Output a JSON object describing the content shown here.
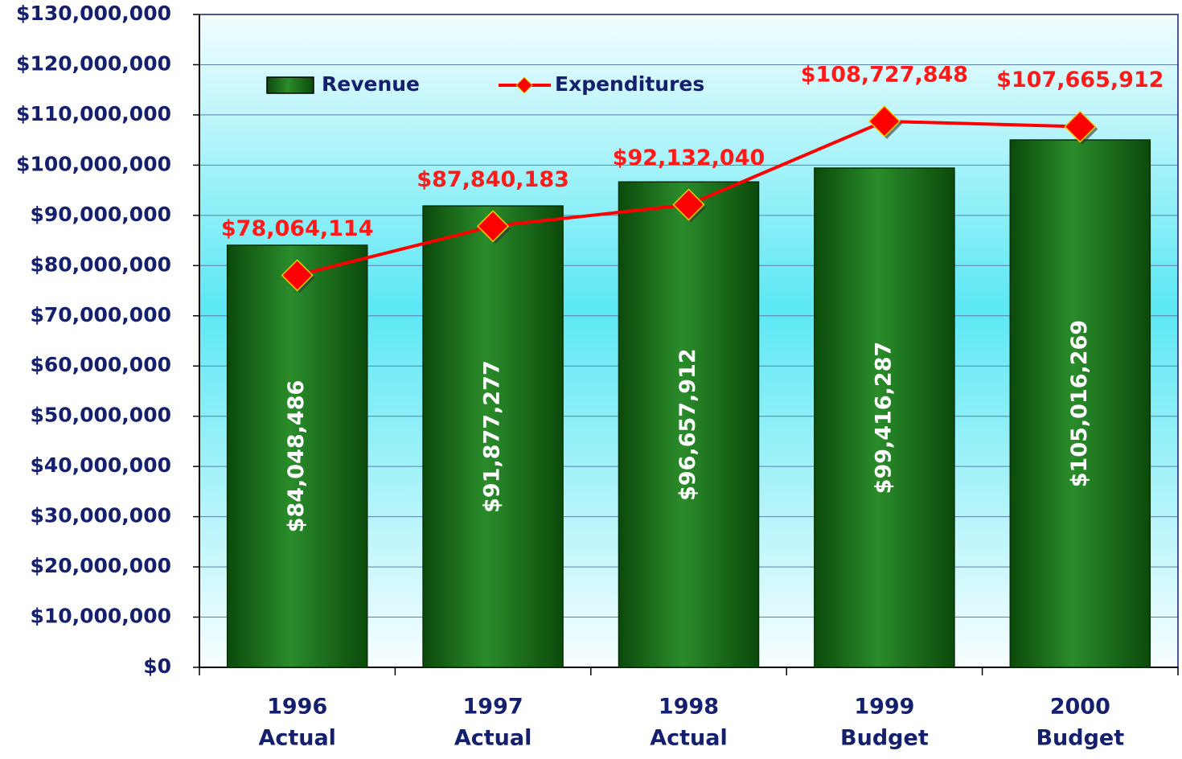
{
  "chart_data": {
    "type": "bar",
    "categories": [
      [
        "1996",
        "Actual"
      ],
      [
        "1997",
        "Actual"
      ],
      [
        "1998",
        "Actual"
      ],
      [
        "1999",
        "Budget"
      ],
      [
        "2000",
        "Budget"
      ]
    ],
    "series": [
      {
        "name": "Revenue",
        "type": "bar",
        "color": "#1e7a1e",
        "values": [
          84048486,
          91877277,
          96657912,
          99416287,
          105016269
        ],
        "value_labels": [
          "$84,048,486",
          "$91,877,277",
          "$96,657,912",
          "$99,416,287",
          "$105,016,269"
        ]
      },
      {
        "name": "Expenditures",
        "type": "line",
        "color": "#ff0000",
        "values": [
          78064114,
          87840183,
          92132040,
          108727848,
          107665912
        ],
        "value_labels": [
          "$78,064,114",
          "$87,840,183",
          "$92,132,040",
          "$108,727,848",
          "$107,665,912"
        ]
      }
    ],
    "ylim": [
      0,
      130000000
    ],
    "yticks": [
      {
        "value": 0,
        "label": "$0"
      },
      {
        "value": 10000000,
        "label": "$10,000,000"
      },
      {
        "value": 20000000,
        "label": "$20,000,000"
      },
      {
        "value": 30000000,
        "label": "$30,000,000"
      },
      {
        "value": 40000000,
        "label": "$40,000,000"
      },
      {
        "value": 50000000,
        "label": "$50,000,000"
      },
      {
        "value": 60000000,
        "label": "$60,000,000"
      },
      {
        "value": 70000000,
        "label": "$70,000,000"
      },
      {
        "value": 80000000,
        "label": "$80,000,000"
      },
      {
        "value": 90000000,
        "label": "$90,000,000"
      },
      {
        "value": 100000000,
        "label": "$100,000,000"
      },
      {
        "value": 110000000,
        "label": "$110,000,000"
      },
      {
        "value": 120000000,
        "label": "$120,000,000"
      },
      {
        "value": 130000000,
        "label": "$130,000,000"
      }
    ],
    "grid": true,
    "legend": "top-left"
  }
}
